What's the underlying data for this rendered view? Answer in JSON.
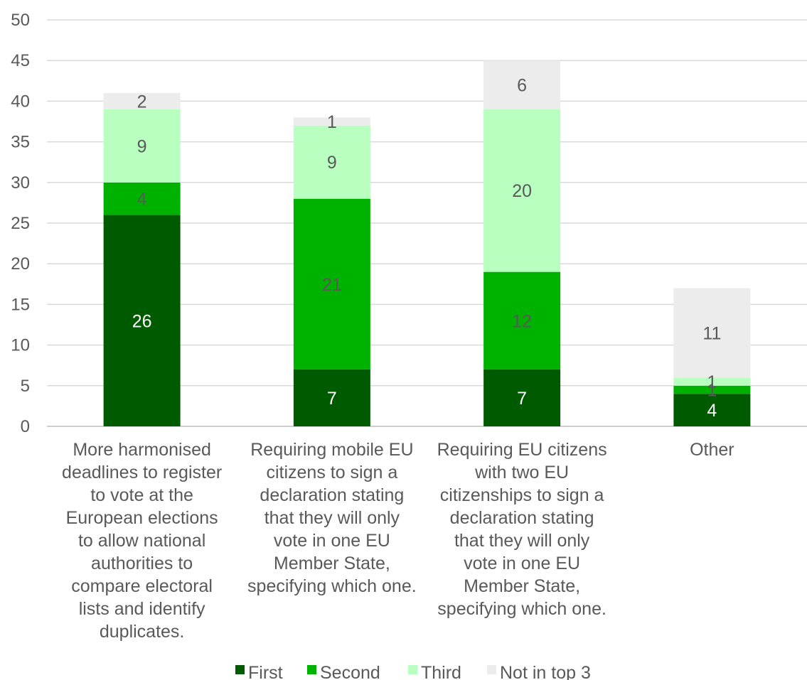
{
  "chart_data": {
    "type": "bar",
    "stacked": true,
    "title": "",
    "xlabel": "",
    "ylabel": "",
    "ylim": [
      0,
      50
    ],
    "yticks": [
      0,
      5,
      10,
      15,
      20,
      25,
      30,
      35,
      40,
      45,
      50
    ],
    "grid": true,
    "legend_position": "bottom",
    "categories": [
      "More harmonised deadlines to register to vote at the European elections to allow national authorities to compare electoral lists and identify duplicates.",
      "Requiring mobile EU citizens to sign a declaration stating that they will only vote in one EU Member State, specifying which one.",
      "Requiring EU citizens with two EU citizenships to sign a declaration stating that they will only vote in one EU Member State, specifying which one.",
      "Other"
    ],
    "category_lines": [
      [
        "More harmonised",
        "deadlines to register",
        "to vote at the",
        "European elections",
        "to allow national",
        "authorities to",
        "compare electoral",
        "lists and identify",
        "duplicates."
      ],
      [
        "Requiring mobile EU",
        "citizens to sign a",
        "declaration stating",
        "that they will only",
        "vote in one EU",
        "Member State,",
        "specifying which one."
      ],
      [
        "Requiring EU citizens",
        "with two EU",
        "citizenships to sign a",
        "declaration stating",
        "that they will only",
        "vote in one EU",
        "Member State,",
        "specifying which one."
      ],
      [
        "Other"
      ]
    ],
    "series": [
      {
        "name": "First",
        "values": [
          26,
          7,
          7,
          4
        ],
        "color": "#005a00",
        "label_color": "#ffffff"
      },
      {
        "name": "Second",
        "values": [
          4,
          21,
          12,
          1
        ],
        "color": "#00b200",
        "label_color": "#595959"
      },
      {
        "name": "Third",
        "values": [
          9,
          9,
          20,
          1
        ],
        "color": "#b8ffc0",
        "label_color": "#595959"
      },
      {
        "name": "Not in top 3",
        "values": [
          2,
          1,
          6,
          11
        ],
        "color": "#ececec",
        "label_color": "#595959"
      }
    ]
  }
}
